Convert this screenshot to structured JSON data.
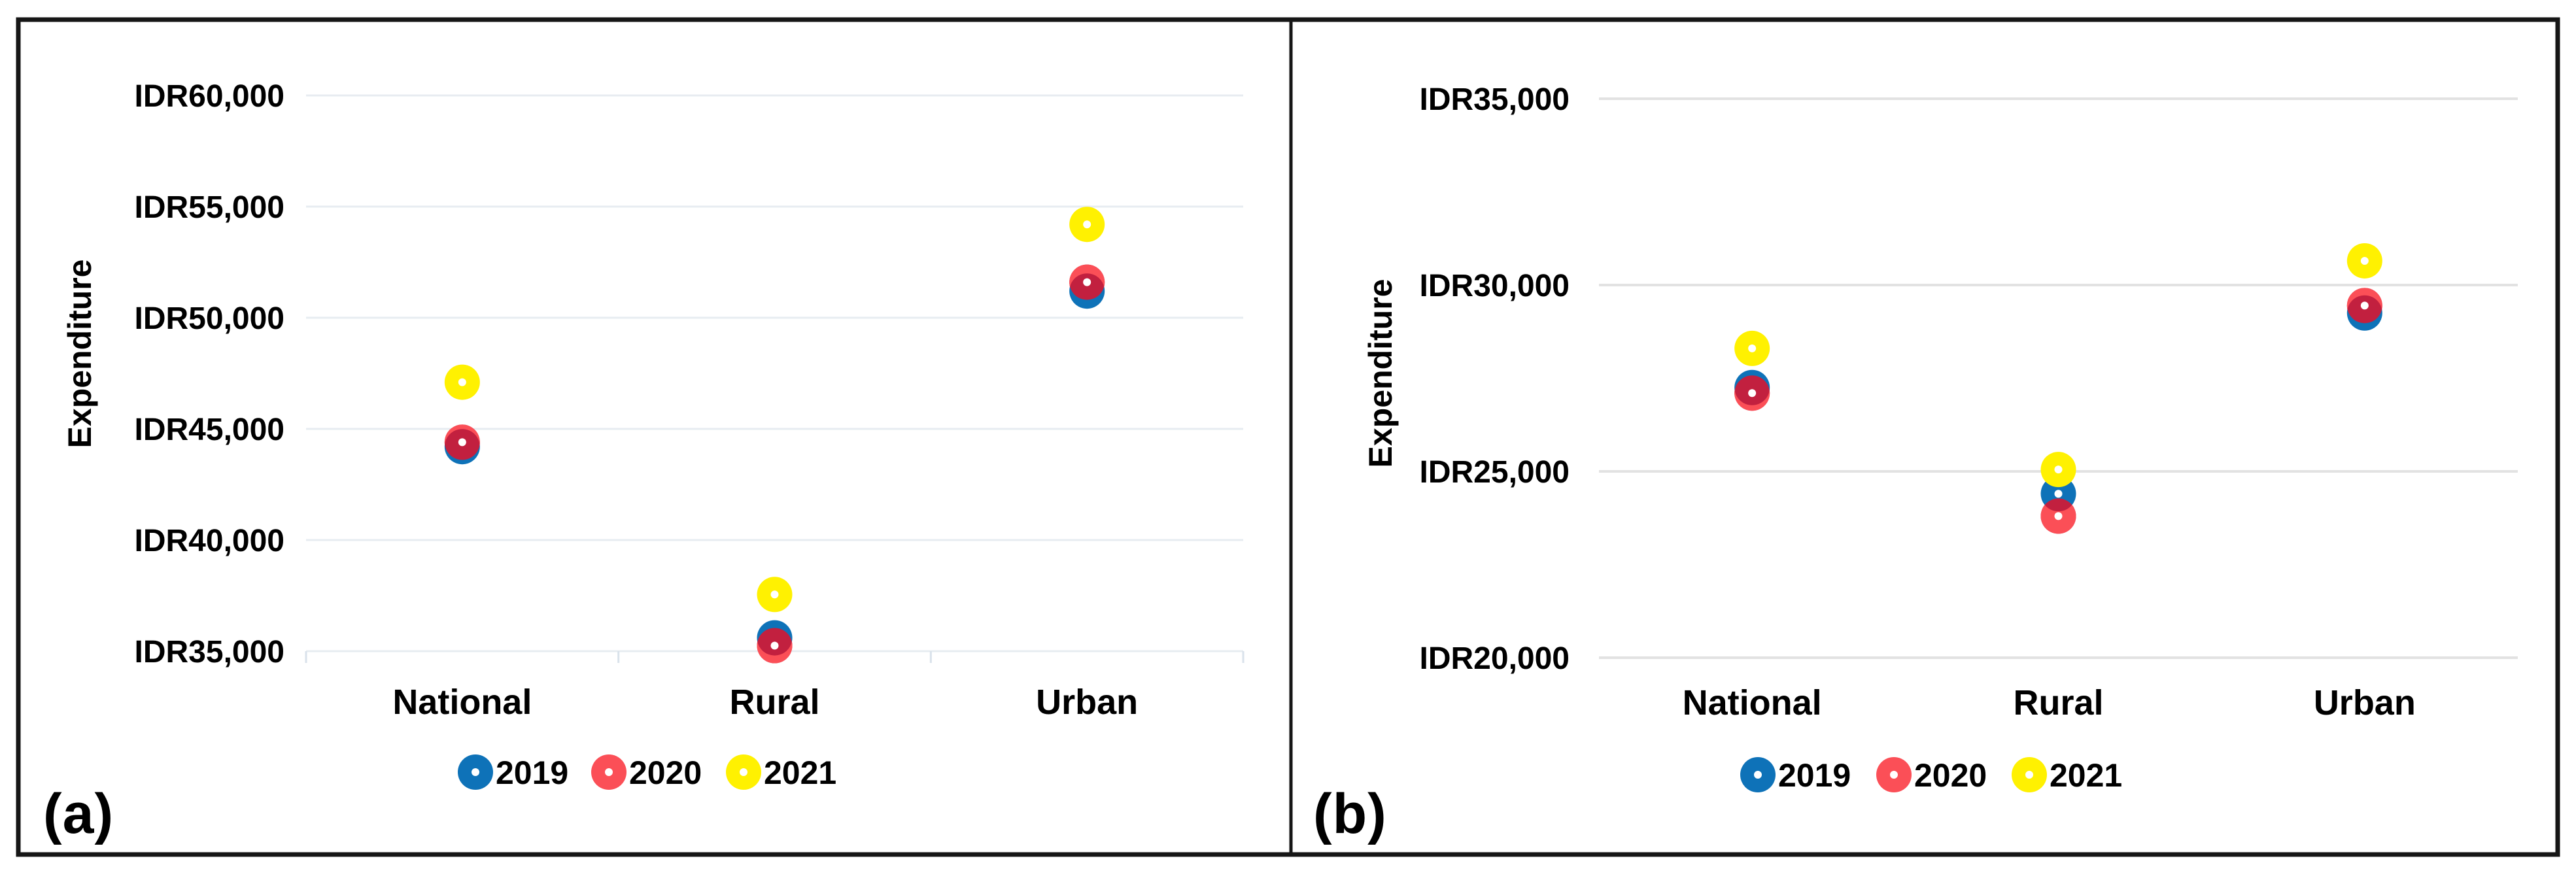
{
  "figure": {
    "panel_letters": [
      "(a)",
      "(b)"
    ],
    "axis_title": "Expenditure",
    "background_color": "#ffffff",
    "frame_color": "#161616"
  },
  "chart_data": [
    {
      "type": "scatter",
      "panel_label": "(a)",
      "ylabel": "Expenditure",
      "categories": [
        "National",
        "Rural",
        "Urban"
      ],
      "series": [
        {
          "name": "2019",
          "color": "#0E72B8",
          "values": [
            44200,
            35600,
            51200
          ]
        },
        {
          "name": "2020",
          "color": "#FB4F57",
          "values": [
            44400,
            35250,
            51600
          ]
        },
        {
          "name": "2021",
          "color": "#FFF101",
          "values": [
            47100,
            37550,
            54200
          ]
        }
      ],
      "ylim": [
        35000,
        60000
      ],
      "ytick_step": 5000,
      "ytick_labels": [
        "IDR60,000",
        "IDR55,000",
        "IDR50,000",
        "IDR45,000",
        "IDR40,000",
        "IDR35,000"
      ],
      "grid": true,
      "grid_color": "#E7ECF1",
      "tick_mark_color": "#D9E2EB",
      "overlap_color": "#C2203F",
      "marker_center_dot_color": "#FFFFFF",
      "legend_position": "bottom",
      "legend_labels": [
        "2019",
        "2020",
        "2021"
      ]
    },
    {
      "type": "scatter",
      "panel_label": "(b)",
      "ylabel": "Expenditure",
      "categories": [
        "National",
        "Rural",
        "Urban"
      ],
      "series": [
        {
          "name": "2019",
          "color": "#0E72B8",
          "values": [
            27250,
            24400,
            29250
          ]
        },
        {
          "name": "2020",
          "color": "#FB4F57",
          "values": [
            27100,
            23800,
            29450
          ]
        },
        {
          "name": "2021",
          "color": "#FFF101",
          "values": [
            28300,
            25050,
            30650
          ]
        }
      ],
      "ylim": [
        20000,
        35000
      ],
      "ytick_step": 5000,
      "ytick_labels": [
        "IDR35,000",
        "IDR30,000",
        "IDR25,000",
        "IDR20,000"
      ],
      "grid": true,
      "grid_color": "#E2E2E2",
      "tick_mark_color": "#E2E2E2",
      "overlap_color": "#C2203F",
      "marker_center_dot_color": "#FFFFFF",
      "legend_position": "bottom",
      "legend_labels": [
        "2019",
        "2020",
        "2021"
      ]
    }
  ]
}
